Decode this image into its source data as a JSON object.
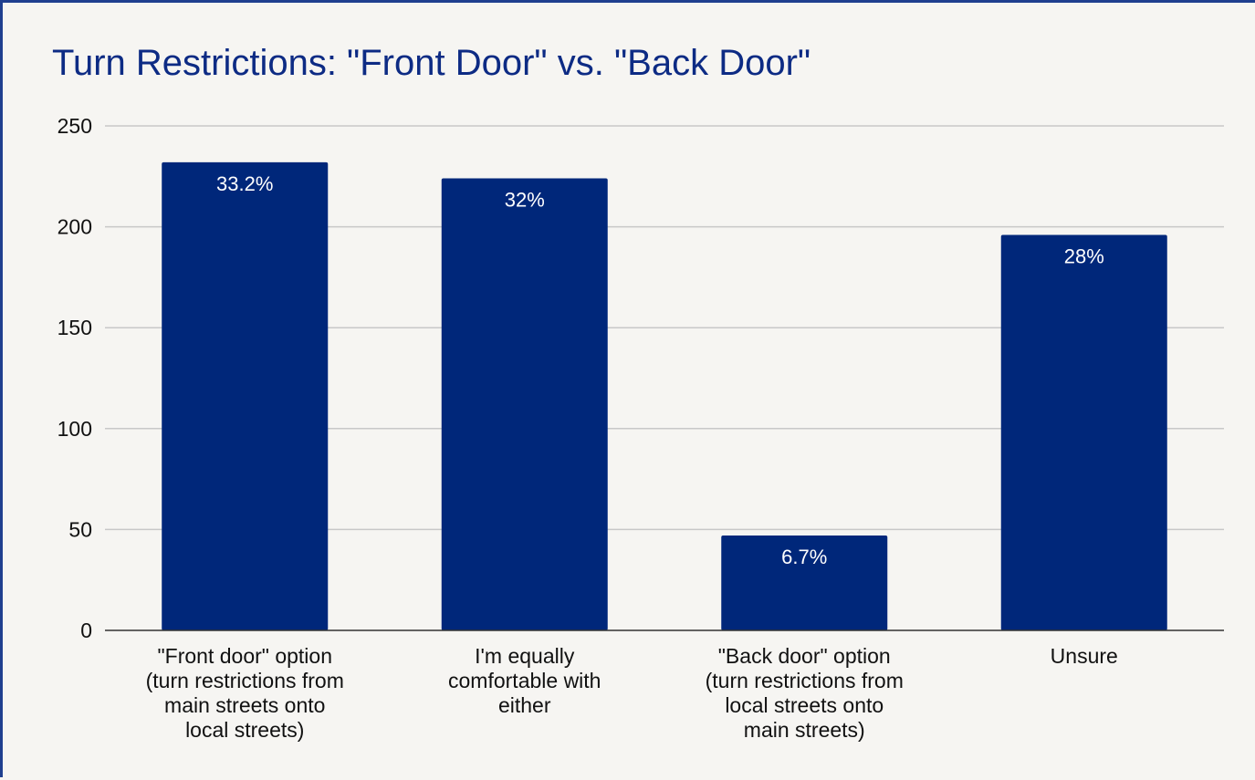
{
  "chart_data": {
    "type": "bar",
    "title": "Turn Restrictions: \"Front Door\" vs. \"Back Door\"",
    "categories": [
      [
        "\"Front door\" option",
        "(turn restrictions from",
        "main streets onto",
        "local streets)"
      ],
      [
        "I'm equally",
        "comfortable with",
        "either"
      ],
      [
        "\"Back door\" option",
        "(turn restrictions from",
        "local streets onto",
        "main streets)"
      ],
      [
        "Unsure"
      ]
    ],
    "values": [
      232,
      224,
      47,
      196
    ],
    "data_labels": [
      "33.2%",
      "32%",
      "6.7%",
      "28%"
    ],
    "ylim": [
      0,
      250
    ],
    "yticks": [
      "0",
      "50",
      "100",
      "150",
      "200",
      "250"
    ],
    "grid": true,
    "colors": {
      "bar": "#00277a",
      "title": "#0d2b84",
      "grid": "#c8c8c8",
      "axis": "#333333"
    }
  }
}
